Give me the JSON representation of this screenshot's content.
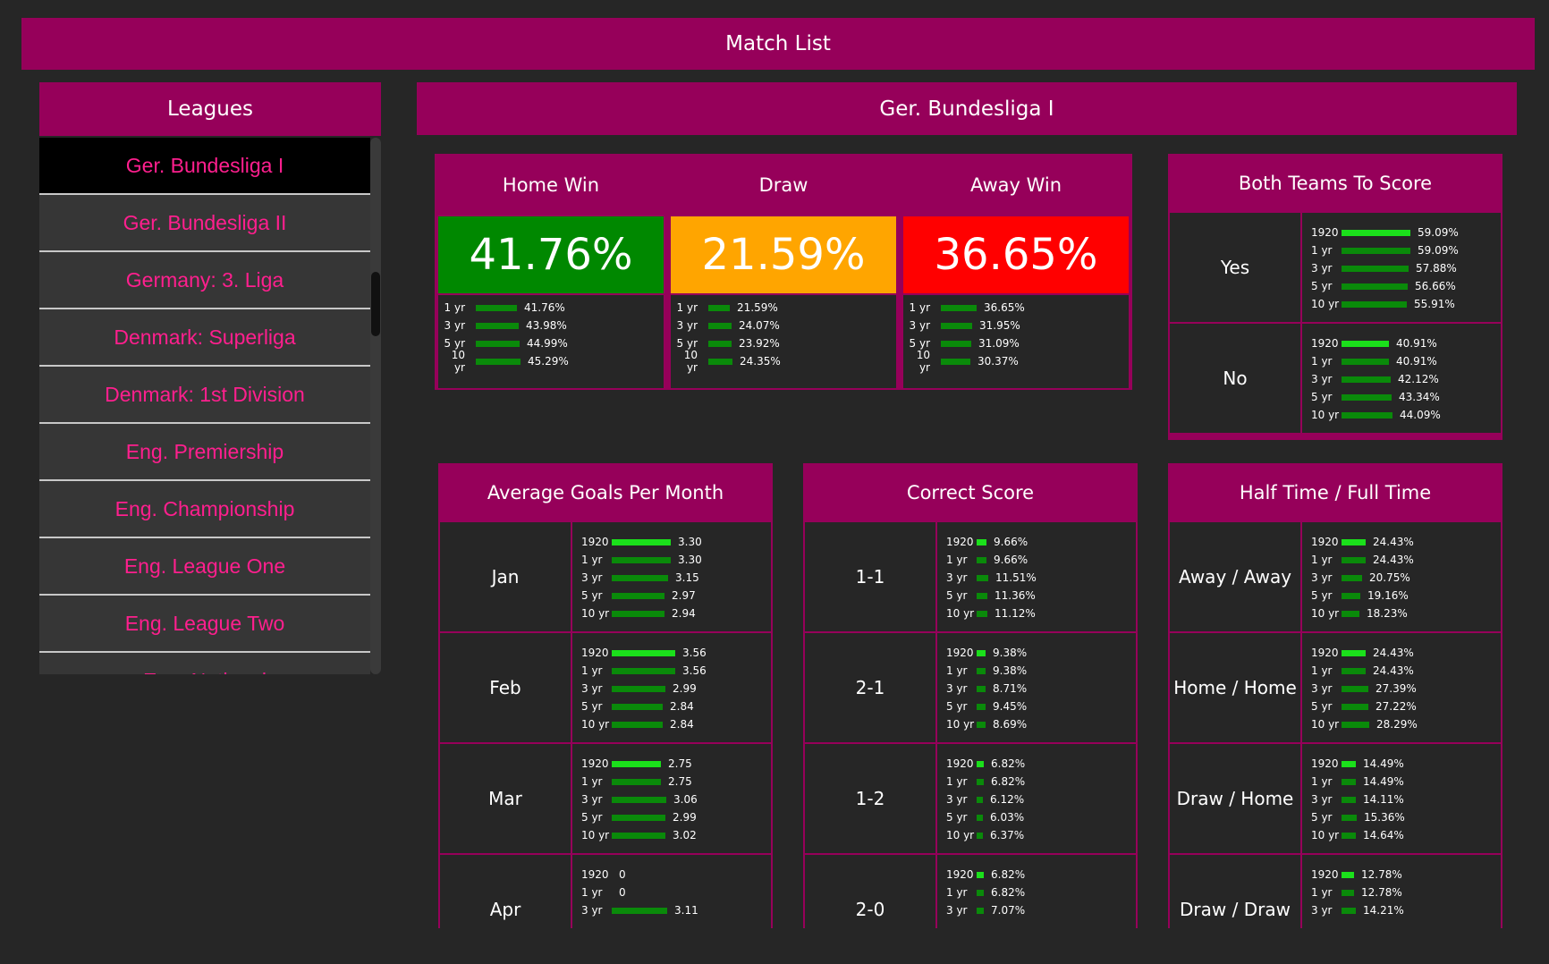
{
  "app": {
    "title": "Match List"
  },
  "leagues": {
    "header": "Leagues",
    "items": [
      "Ger. Bundesliga I",
      "Ger. Bundesliga II",
      "Germany: 3. Liga",
      "Denmark: Superliga",
      "Denmark: 1st Division",
      "Eng. Premiership",
      "Eng. Championship",
      "Eng. League One",
      "Eng. League Two",
      "Eng. National"
    ],
    "selected": "Ger. Bundesliga I"
  },
  "main": {
    "title": "Ger. Bundesliga I"
  },
  "colors": {
    "header": "#96005a",
    "home": "#008800",
    "draw": "#ffa500",
    "away": "#ff0000",
    "bar": "#0a8a0a",
    "bar_current": "#1be01b",
    "league_text": "#ff1f8e"
  },
  "result": [
    {
      "label": "Home Win",
      "value": "41.76%",
      "color": "#008800",
      "rows": [
        {
          "period": "1 yr",
          "value": "41.76%",
          "level": 41.76
        },
        {
          "period": "3 yr",
          "value": "43.98%",
          "level": 43.98
        },
        {
          "period": "5 yr",
          "value": "44.99%",
          "level": 44.99
        },
        {
          "period": "10 yr",
          "value": "45.29%",
          "level": 45.29
        }
      ]
    },
    {
      "label": "Draw",
      "value": "21.59%",
      "color": "#ffa500",
      "rows": [
        {
          "period": "1 yr",
          "value": "21.59%",
          "level": 21.59
        },
        {
          "period": "3 yr",
          "value": "24.07%",
          "level": 24.07
        },
        {
          "period": "5 yr",
          "value": "23.92%",
          "level": 23.92
        },
        {
          "period": "10 yr",
          "value": "24.35%",
          "level": 24.35
        }
      ]
    },
    {
      "label": "Away Win",
      "value": "36.65%",
      "color": "#ff0000",
      "rows": [
        {
          "period": "1 yr",
          "value": "36.65%",
          "level": 36.65
        },
        {
          "period": "3 yr",
          "value": "31.95%",
          "level": 31.95
        },
        {
          "period": "5 yr",
          "value": "31.09%",
          "level": 31.09
        },
        {
          "period": "10 yr",
          "value": "30.37%",
          "level": 30.37
        }
      ]
    }
  ],
  "btts": {
    "title": "Both Teams To Score",
    "rows": [
      {
        "label": "Yes",
        "stats": [
          {
            "period": "1920",
            "value": "59.09%",
            "level": 59.09
          },
          {
            "period": "1 yr",
            "value": "59.09%",
            "level": 59.09
          },
          {
            "period": "3 yr",
            "value": "57.88%",
            "level": 57.88
          },
          {
            "period": "5 yr",
            "value": "56.66%",
            "level": 56.66
          },
          {
            "period": "10 yr",
            "value": "55.91%",
            "level": 55.91
          }
        ]
      },
      {
        "label": "No",
        "stats": [
          {
            "period": "1920",
            "value": "40.91%",
            "level": 40.91
          },
          {
            "period": "1 yr",
            "value": "40.91%",
            "level": 40.91
          },
          {
            "period": "3 yr",
            "value": "42.12%",
            "level": 42.12
          },
          {
            "period": "5 yr",
            "value": "43.34%",
            "level": 43.34
          },
          {
            "period": "10 yr",
            "value": "44.09%",
            "level": 44.09
          }
        ]
      }
    ]
  },
  "avg_goals": {
    "title": "Average Goals Per Month",
    "rows": [
      {
        "label": "Jan",
        "stats": [
          {
            "period": "1920",
            "value": "3.30",
            "level": 3.3
          },
          {
            "period": "1 yr",
            "value": "3.30",
            "level": 3.3
          },
          {
            "period": "3 yr",
            "value": "3.15",
            "level": 3.15
          },
          {
            "period": "5 yr",
            "value": "2.97",
            "level": 2.97
          },
          {
            "period": "10 yr",
            "value": "2.94",
            "level": 2.94
          }
        ]
      },
      {
        "label": "Feb",
        "stats": [
          {
            "period": "1920",
            "value": "3.56",
            "level": 3.56
          },
          {
            "period": "1 yr",
            "value": "3.56",
            "level": 3.56
          },
          {
            "period": "3 yr",
            "value": "2.99",
            "level": 2.99
          },
          {
            "period": "5 yr",
            "value": "2.84",
            "level": 2.84
          },
          {
            "period": "10 yr",
            "value": "2.84",
            "level": 2.84
          }
        ]
      },
      {
        "label": "Mar",
        "stats": [
          {
            "period": "1920",
            "value": "2.75",
            "level": 2.75
          },
          {
            "period": "1 yr",
            "value": "2.75",
            "level": 2.75
          },
          {
            "period": "3 yr",
            "value": "3.06",
            "level": 3.06
          },
          {
            "period": "5 yr",
            "value": "2.99",
            "level": 2.99
          },
          {
            "period": "10 yr",
            "value": "3.02",
            "level": 3.02
          }
        ]
      },
      {
        "label": "Apr",
        "stats": [
          {
            "period": "1920",
            "value": "0",
            "level": 0
          },
          {
            "period": "1 yr",
            "value": "0",
            "level": 0
          },
          {
            "period": "3 yr",
            "value": "3.11",
            "level": 3.11
          }
        ]
      }
    ]
  },
  "correct_score": {
    "title": "Correct Score",
    "rows": [
      {
        "label": "1-1",
        "stats": [
          {
            "period": "1920",
            "value": "9.66%",
            "level": 9.66
          },
          {
            "period": "1 yr",
            "value": "9.66%",
            "level": 9.66
          },
          {
            "period": "3 yr",
            "value": "11.51%",
            "level": 11.51
          },
          {
            "period": "5 yr",
            "value": "11.36%",
            "level": 11.36
          },
          {
            "period": "10 yr",
            "value": "11.12%",
            "level": 11.12
          }
        ]
      },
      {
        "label": "2-1",
        "stats": [
          {
            "period": "1920",
            "value": "9.38%",
            "level": 9.38
          },
          {
            "period": "1 yr",
            "value": "9.38%",
            "level": 9.38
          },
          {
            "period": "3 yr",
            "value": "8.71%",
            "level": 8.71
          },
          {
            "period": "5 yr",
            "value": "9.45%",
            "level": 9.45
          },
          {
            "period": "10 yr",
            "value": "8.69%",
            "level": 8.69
          }
        ]
      },
      {
        "label": "1-2",
        "stats": [
          {
            "period": "1920",
            "value": "6.82%",
            "level": 6.82
          },
          {
            "period": "1 yr",
            "value": "6.82%",
            "level": 6.82
          },
          {
            "period": "3 yr",
            "value": "6.12%",
            "level": 6.12
          },
          {
            "period": "5 yr",
            "value": "6.03%",
            "level": 6.03
          },
          {
            "period": "10 yr",
            "value": "6.37%",
            "level": 6.37
          }
        ]
      },
      {
        "label": "2-0",
        "stats": [
          {
            "period": "1920",
            "value": "6.82%",
            "level": 6.82
          },
          {
            "period": "1 yr",
            "value": "6.82%",
            "level": 6.82
          },
          {
            "period": "3 yr",
            "value": "7.07%",
            "level": 7.07
          }
        ]
      }
    ]
  },
  "htft": {
    "title": "Half Time / Full Time",
    "rows": [
      {
        "label": "Away / Away",
        "stats": [
          {
            "period": "1920",
            "value": "24.43%",
            "level": 24.43
          },
          {
            "period": "1 yr",
            "value": "24.43%",
            "level": 24.43
          },
          {
            "period": "3 yr",
            "value": "20.75%",
            "level": 20.75
          },
          {
            "period": "5 yr",
            "value": "19.16%",
            "level": 19.16
          },
          {
            "period": "10 yr",
            "value": "18.23%",
            "level": 18.23
          }
        ]
      },
      {
        "label": "Home / Home",
        "stats": [
          {
            "period": "1920",
            "value": "24.43%",
            "level": 24.43
          },
          {
            "period": "1 yr",
            "value": "24.43%",
            "level": 24.43
          },
          {
            "period": "3 yr",
            "value": "27.39%",
            "level": 27.39
          },
          {
            "period": "5 yr",
            "value": "27.22%",
            "level": 27.22
          },
          {
            "period": "10 yr",
            "value": "28.29%",
            "level": 28.29
          }
        ]
      },
      {
        "label": "Draw / Home",
        "stats": [
          {
            "period": "1920",
            "value": "14.49%",
            "level": 14.49
          },
          {
            "period": "1 yr",
            "value": "14.49%",
            "level": 14.49
          },
          {
            "period": "3 yr",
            "value": "14.11%",
            "level": 14.11
          },
          {
            "period": "5 yr",
            "value": "15.36%",
            "level": 15.36
          },
          {
            "period": "10 yr",
            "value": "14.64%",
            "level": 14.64
          }
        ]
      },
      {
        "label": "Draw / Draw",
        "stats": [
          {
            "period": "1920",
            "value": "12.78%",
            "level": 12.78
          },
          {
            "period": "1 yr",
            "value": "12.78%",
            "level": 12.78
          },
          {
            "period": "3 yr",
            "value": "14.21%",
            "level": 14.21
          }
        ]
      }
    ]
  }
}
